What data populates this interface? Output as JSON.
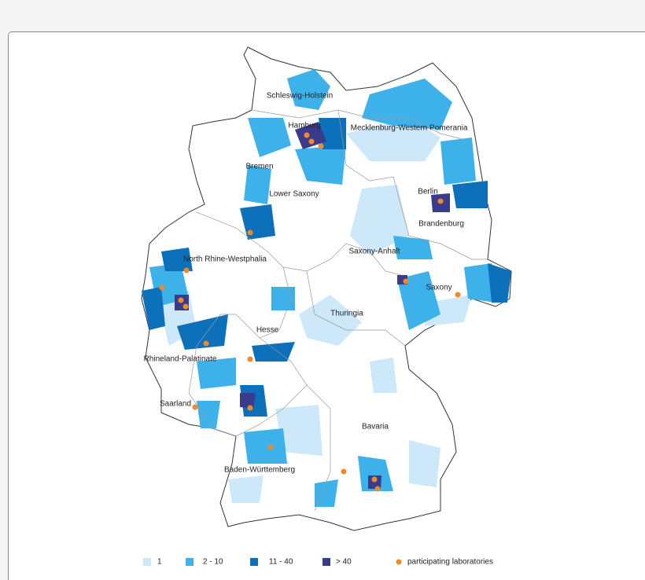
{
  "map": {
    "regions": [
      {
        "label": "Schleswig-Holstein"
      },
      {
        "label": "Hamburg"
      },
      {
        "label": "Mecklenburg-Western Pomerania"
      },
      {
        "label": "Bremen"
      },
      {
        "label": "Lower Saxony"
      },
      {
        "label": "Berlin"
      },
      {
        "label": "Brandenburg"
      },
      {
        "label": "North Rhine-Westphalia"
      },
      {
        "label": "Saxony-Anhalt"
      },
      {
        "label": "Saxony"
      },
      {
        "label": "Thuringia"
      },
      {
        "label": "Hesse"
      },
      {
        "label": "Rhineland-Palatinate"
      },
      {
        "label": "Saarland"
      },
      {
        "label": "Bavaria"
      },
      {
        "label": "Baden-Württemberg"
      }
    ]
  },
  "legend": {
    "items": [
      {
        "label": "1",
        "color": "#cde8f8"
      },
      {
        "label": "2  -  10",
        "color": "#3db2ea"
      },
      {
        "label": "11  -  40",
        "color": "#0c70bb"
      },
      {
        "label": "> 40",
        "color": "#3a3b8c"
      }
    ],
    "marker": {
      "label": "participating laboratories",
      "color": "#f0892a"
    }
  }
}
